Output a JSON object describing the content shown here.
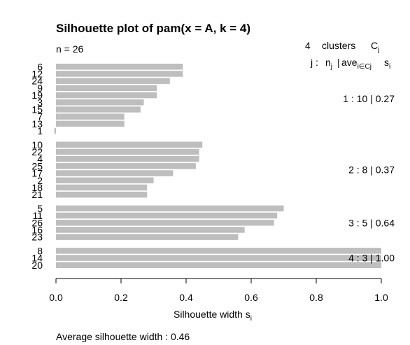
{
  "chart_data": {
    "type": "bar",
    "orientation": "horizontal",
    "title": "Silhouette plot of pam(x = A, k = 4)",
    "n_label": "n = 26",
    "header": {
      "k": "4",
      "clusters_word": "clusters",
      "C": "C",
      "C_sub": "j",
      "j_label": "j :",
      "n": "n",
      "n_sub": "j",
      "sep": "|",
      "ave": "ave",
      "ave_sub": "i∈Cj",
      "s": "s",
      "s_sub": "i"
    },
    "xlabel": "Silhouette width s",
    "xlabel_sub": "i",
    "xlim": [
      0,
      1
    ],
    "xticks": [
      "0.0",
      "0.2",
      "0.4",
      "0.6",
      "0.8",
      "1.0"
    ],
    "bar_color": "#bebebe",
    "average_text": "Average silhouette width :  0.46",
    "clusters": [
      {
        "label": "1 :   10  |  0.27",
        "observations": [
          "6",
          "12",
          "24",
          "9",
          "19",
          "3",
          "15",
          "7",
          "13",
          "1"
        ],
        "widths": [
          0.39,
          0.39,
          0.35,
          0.31,
          0.31,
          0.27,
          0.26,
          0.21,
          0.21,
          -0.005
        ]
      },
      {
        "label": "2 :   8  |  0.37",
        "observations": [
          "10",
          "22",
          "4",
          "25",
          "17",
          "2",
          "18",
          "21"
        ],
        "widths": [
          0.45,
          0.44,
          0.44,
          0.43,
          0.36,
          0.3,
          0.28,
          0.28
        ]
      },
      {
        "label": "3 :   5  |  0.64",
        "observations": [
          "5",
          "11",
          "26",
          "16",
          "23"
        ],
        "widths": [
          0.7,
          0.68,
          0.67,
          0.58,
          0.56
        ]
      },
      {
        "label": "4 :   3  |  1.00",
        "observations": [
          "8",
          "14",
          "20"
        ],
        "widths": [
          1.0,
          1.0,
          1.0
        ]
      }
    ]
  }
}
